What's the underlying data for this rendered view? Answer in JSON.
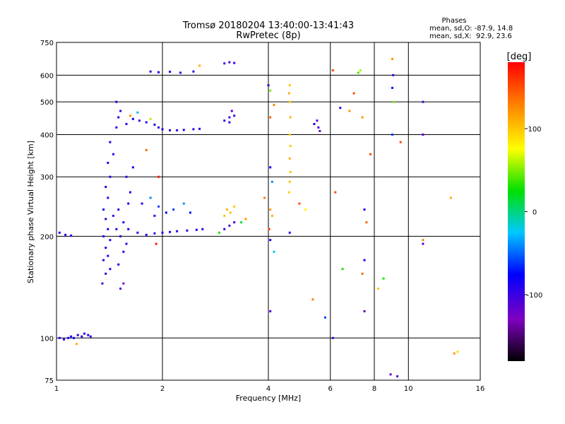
{
  "chart_data": {
    "type": "scatter",
    "title": "Tromsø 20180204 13:40:00-13:41:43",
    "subtitle": "RwPretec (8p)",
    "xlabel": "Frequency [MHz]",
    "ylabel": "Stationary phase Virtual Height [km]",
    "xscale": "log",
    "yscale": "log",
    "xlim": [
      1,
      16
    ],
    "ylim": [
      75,
      750
    ],
    "xticks": [
      1,
      2,
      4,
      6,
      8,
      10,
      16
    ],
    "yticks": [
      75,
      100,
      200,
      300,
      400,
      500,
      600,
      750
    ],
    "xgrid": [
      2,
      4,
      6,
      8,
      10
    ],
    "ygrid": [
      100,
      200,
      300,
      400,
      500,
      600
    ],
    "grid": true,
    "phase_info": {
      "title": "Phases",
      "line_o": "mean, sd,O: -87.9, 14.8",
      "line_x": "mean, sd,X:  92.9, 23.6"
    },
    "colorbar": {
      "label": "[deg]",
      "range": [
        -180,
        180
      ],
      "ticks": [
        "100",
        "0",
        "-100"
      ],
      "tick_values": [
        100,
        0,
        -100
      ]
    },
    "series": [
      {
        "points": [
          [
            1.02,
            100,
            -90
          ],
          [
            1.05,
            99,
            -95
          ],
          [
            1.08,
            100,
            -85
          ],
          [
            1.1,
            101,
            -90
          ],
          [
            1.12,
            100,
            -80
          ],
          [
            1.15,
            102,
            -88
          ],
          [
            1.18,
            101,
            -92
          ],
          [
            1.2,
            103,
            -85
          ],
          [
            1.23,
            102,
            -90
          ],
          [
            1.25,
            101,
            -95
          ],
          [
            1.14,
            96,
            110
          ],
          [
            1.02,
            205,
            -80
          ],
          [
            1.06,
            202,
            -90
          ],
          [
            1.1,
            201,
            -85
          ],
          [
            1.35,
            145,
            -100
          ],
          [
            1.38,
            155,
            -90
          ],
          [
            1.42,
            160,
            -95
          ],
          [
            1.4,
            175,
            -85
          ],
          [
            1.36,
            170,
            -92
          ],
          [
            1.38,
            185,
            -88
          ],
          [
            1.36,
            200,
            -90
          ],
          [
            1.42,
            195,
            -95
          ],
          [
            1.4,
            210,
            -85
          ],
          [
            1.38,
            225,
            -90
          ],
          [
            1.36,
            240,
            -80
          ],
          [
            1.4,
            260,
            -88
          ],
          [
            1.38,
            280,
            -92
          ],
          [
            1.42,
            300,
            -85
          ],
          [
            1.4,
            330,
            -90
          ],
          [
            1.45,
            350,
            -95
          ],
          [
            1.42,
            380,
            -85
          ],
          [
            1.48,
            420,
            -90
          ],
          [
            1.5,
            450,
            -88
          ],
          [
            1.52,
            470,
            -92
          ],
          [
            1.48,
            500,
            -85
          ],
          [
            1.45,
            230,
            -100
          ],
          [
            1.5,
            240,
            -90
          ],
          [
            1.55,
            220,
            -85
          ],
          [
            1.48,
            210,
            -95
          ],
          [
            1.52,
            200,
            -88
          ],
          [
            1.58,
            190,
            -92
          ],
          [
            1.55,
            180,
            -85
          ],
          [
            1.5,
            165,
            -90
          ],
          [
            1.6,
            250,
            -80
          ],
          [
            1.62,
            270,
            -88
          ],
          [
            1.58,
            300,
            -92
          ],
          [
            1.65,
            320,
            -85
          ],
          [
            1.55,
            145,
            -130
          ],
          [
            1.52,
            140,
            -110
          ],
          [
            1.58,
            430,
            -90
          ],
          [
            1.65,
            445,
            -85
          ],
          [
            1.72,
            440,
            -95
          ],
          [
            1.8,
            435,
            -88
          ],
          [
            1.9,
            428,
            -92
          ],
          [
            1.95,
            420,
            -90
          ],
          [
            2.0,
            415,
            -85
          ],
          [
            2.1,
            412,
            -88
          ],
          [
            2.2,
            412,
            -92
          ],
          [
            2.3,
            413,
            -85
          ],
          [
            2.45,
            415,
            -90
          ],
          [
            2.55,
            416,
            -88
          ],
          [
            1.62,
            455,
            120
          ],
          [
            1.7,
            465,
            -30
          ],
          [
            1.85,
            445,
            60
          ],
          [
            1.6,
            210,
            -85
          ],
          [
            1.7,
            205,
            -90
          ],
          [
            1.8,
            202,
            -88
          ],
          [
            1.9,
            204,
            -92
          ],
          [
            2.0,
            205,
            -85
          ],
          [
            2.1,
            206,
            -90
          ],
          [
            2.2,
            207,
            -88
          ],
          [
            2.35,
            208,
            -92
          ],
          [
            2.5,
            209,
            -85
          ],
          [
            2.6,
            210,
            -90
          ],
          [
            1.75,
            250,
            -90
          ],
          [
            1.85,
            260,
            -40
          ],
          [
            1.9,
            230,
            -95
          ],
          [
            1.95,
            245,
            -60
          ],
          [
            2.05,
            235,
            -80
          ],
          [
            2.15,
            240,
            -60
          ],
          [
            2.3,
            250,
            -40
          ],
          [
            2.4,
            235,
            -70
          ],
          [
            1.92,
            190,
            170
          ],
          [
            1.8,
            360,
            140
          ],
          [
            1.95,
            300,
            170
          ],
          [
            1.85,
            615,
            -90
          ],
          [
            1.95,
            612,
            -85
          ],
          [
            2.1,
            614,
            -88
          ],
          [
            2.25,
            610,
            -92
          ],
          [
            2.45,
            615,
            -95
          ],
          [
            2.55,
            640,
            110
          ],
          [
            3.0,
            650,
            -110
          ],
          [
            3.1,
            655,
            -105
          ],
          [
            3.2,
            652,
            -100
          ],
          [
            3.0,
            440,
            -100
          ],
          [
            3.1,
            450,
            -105
          ],
          [
            3.2,
            455,
            -95
          ],
          [
            3.15,
            470,
            -110
          ],
          [
            3.1,
            435,
            -100
          ],
          [
            3.0,
            230,
            100
          ],
          [
            3.05,
            240,
            110
          ],
          [
            3.12,
            235,
            105
          ],
          [
            3.2,
            245,
            100
          ],
          [
            3.0,
            210,
            -100
          ],
          [
            3.1,
            215,
            -105
          ],
          [
            3.2,
            220,
            -100
          ],
          [
            3.35,
            220,
            10
          ],
          [
            3.45,
            225,
            120
          ],
          [
            2.9,
            205,
            30
          ],
          [
            4.0,
            560,
            -100
          ],
          [
            4.05,
            540,
            50
          ],
          [
            4.15,
            490,
            130
          ],
          [
            4.05,
            450,
            140
          ],
          [
            4.05,
            320,
            -80
          ],
          [
            4.1,
            290,
            -40
          ],
          [
            4.05,
            240,
            120
          ],
          [
            4.1,
            230,
            110
          ],
          [
            4.02,
            210,
            160
          ],
          [
            4.05,
            195,
            -90
          ],
          [
            4.05,
            120,
            -110
          ],
          [
            4.15,
            180,
            -20
          ],
          [
            3.9,
            260,
            130
          ],
          [
            4.6,
            560,
            100
          ],
          [
            4.58,
            530,
            110
          ],
          [
            4.6,
            500,
            100
          ],
          [
            4.62,
            450,
            105
          ],
          [
            4.6,
            400,
            95
          ],
          [
            4.62,
            370,
            100
          ],
          [
            4.6,
            340,
            110
          ],
          [
            4.62,
            310,
            100
          ],
          [
            4.6,
            290,
            105
          ],
          [
            4.58,
            270,
            95
          ],
          [
            4.6,
            205,
            -100
          ],
          [
            4.9,
            250,
            150
          ],
          [
            5.1,
            240,
            80
          ],
          [
            5.5,
            440,
            -110
          ],
          [
            5.55,
            420,
            -100
          ],
          [
            5.6,
            410,
            -120
          ],
          [
            5.4,
            430,
            -90
          ],
          [
            5.35,
            130,
            130
          ],
          [
            5.8,
            115,
            -60
          ],
          [
            6.1,
            620,
            150
          ],
          [
            6.4,
            480,
            -100
          ],
          [
            6.2,
            270,
            150
          ],
          [
            6.1,
            100,
            -100
          ],
          [
            6.5,
            160,
            30
          ],
          [
            6.8,
            470,
            120
          ],
          [
            7.0,
            530,
            150
          ],
          [
            7.2,
            610,
            40
          ],
          [
            7.3,
            620,
            60
          ],
          [
            7.4,
            450,
            120
          ],
          [
            7.5,
            240,
            -90
          ],
          [
            7.6,
            220,
            140
          ],
          [
            7.5,
            170,
            -80
          ],
          [
            7.4,
            155,
            140
          ],
          [
            7.5,
            120,
            -110
          ],
          [
            7.8,
            350,
            150
          ],
          [
            8.2,
            140,
            100
          ],
          [
            8.5,
            150,
            30
          ],
          [
            9.0,
            670,
            120
          ],
          [
            9.05,
            600,
            -100
          ],
          [
            9.0,
            550,
            -70
          ],
          [
            9.1,
            500,
            50
          ],
          [
            9.0,
            400,
            -60
          ],
          [
            8.9,
            78,
            -120
          ],
          [
            9.3,
            77,
            -110
          ],
          [
            9.5,
            380,
            150
          ],
          [
            11.0,
            500,
            -100
          ],
          [
            11.0,
            400,
            -110
          ],
          [
            11.0,
            195,
            130
          ],
          [
            11.0,
            190,
            -110
          ],
          [
            13.2,
            260,
            110
          ],
          [
            13.5,
            90,
            120
          ],
          [
            13.8,
            91,
            90
          ]
        ]
      }
    ]
  }
}
